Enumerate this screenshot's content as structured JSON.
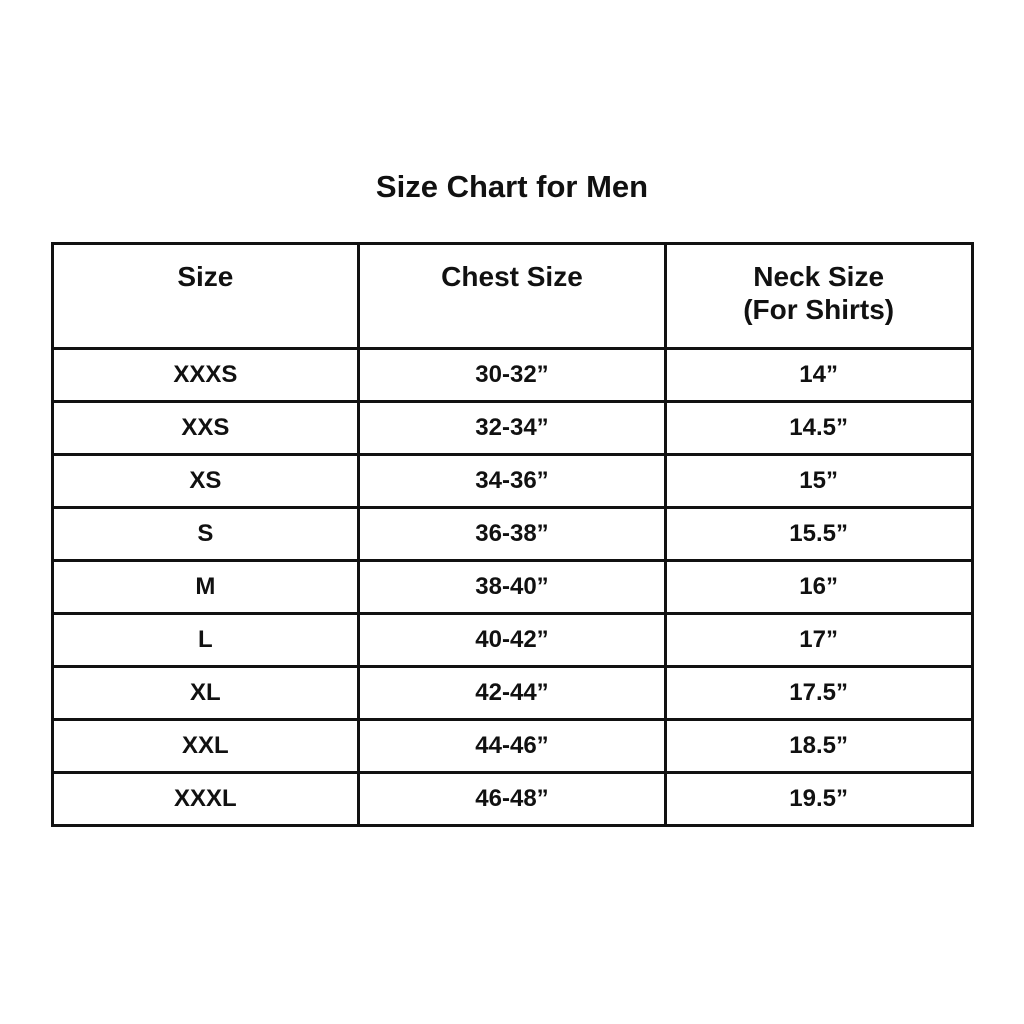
{
  "page": {
    "title": "Size Chart for Men"
  },
  "colors": {
    "border": "#111111",
    "text": "#111111",
    "background": "#ffffff"
  },
  "table": {
    "headers": [
      {
        "label": "Size",
        "sublabel": ""
      },
      {
        "label": "Chest Size",
        "sublabel": ""
      },
      {
        "label": "Neck Size",
        "sublabel": "(For Shirts)"
      }
    ],
    "rows": [
      {
        "size": "XXXS",
        "chest": "30-32”",
        "neck": "14”"
      },
      {
        "size": "XXS",
        "chest": "32-34”",
        "neck": "14.5”"
      },
      {
        "size": "XS",
        "chest": "34-36”",
        "neck": "15”"
      },
      {
        "size": "S",
        "chest": "36-38”",
        "neck": "15.5”"
      },
      {
        "size": "M",
        "chest": "38-40”",
        "neck": "16”"
      },
      {
        "size": "L",
        "chest": "40-42”",
        "neck": "17”"
      },
      {
        "size": "XL",
        "chest": "42-44”",
        "neck": "17.5”"
      },
      {
        "size": "XXL",
        "chest": "44-46”",
        "neck": "18.5”"
      },
      {
        "size": "XXXL",
        "chest": "46-48”",
        "neck": "19.5”"
      }
    ]
  },
  "chart_data": {
    "type": "table",
    "title": "Size Chart for Men",
    "columns": [
      "Size",
      "Chest Size",
      "Neck Size (For Shirts)"
    ],
    "rows": [
      [
        "XXXS",
        "30-32”",
        "14”"
      ],
      [
        "XXS",
        "32-34”",
        "14.5”"
      ],
      [
        "XS",
        "34-36”",
        "15”"
      ],
      [
        "S",
        "36-38”",
        "15.5”"
      ],
      [
        "M",
        "38-40”",
        "16”"
      ],
      [
        "L",
        "40-42”",
        "17”"
      ],
      [
        "XL",
        "42-44”",
        "17.5”"
      ],
      [
        "XXL",
        "44-46”",
        "18.5”"
      ],
      [
        "XXXL",
        "46-48”",
        "19.5”"
      ]
    ]
  }
}
